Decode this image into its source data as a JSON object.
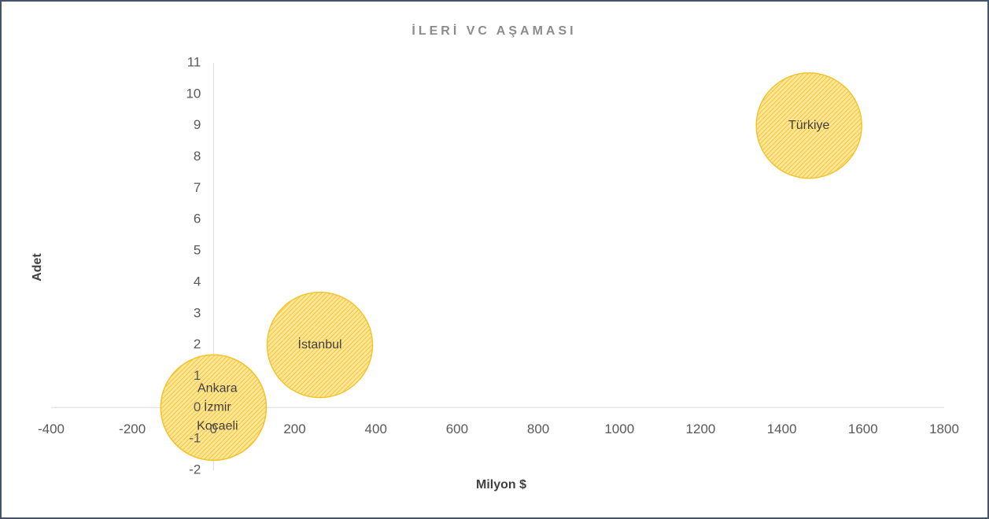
{
  "chart_data": {
    "type": "bubble",
    "title": "İLERİ VC AŞAMASI",
    "x_label": "Milyon $",
    "y_label": "Adet",
    "series": [
      {
        "color": "#ffd966",
        "edge_color": "#f4c430",
        "labels": [
          "Ankara",
          "İzmir",
          "Kocaeli",
          "İstanbul",
          "Türkiye"
        ],
        "x": [
          0,
          0,
          0,
          262,
          1467
        ],
        "values": [
          0,
          0,
          0,
          2,
          9
        ]
      }
    ],
    "xlim": [
      -400,
      1800
    ],
    "xticks": [
      -400,
      -200,
      0,
      200,
      400,
      600,
      800,
      1000,
      1200,
      1400,
      1600,
      1800
    ],
    "ylim": [
      -2,
      11
    ],
    "yticks": [
      -2,
      -1,
      0,
      1,
      2,
      3,
      4,
      5,
      6,
      7,
      8,
      9,
      10,
      11
    ]
  }
}
